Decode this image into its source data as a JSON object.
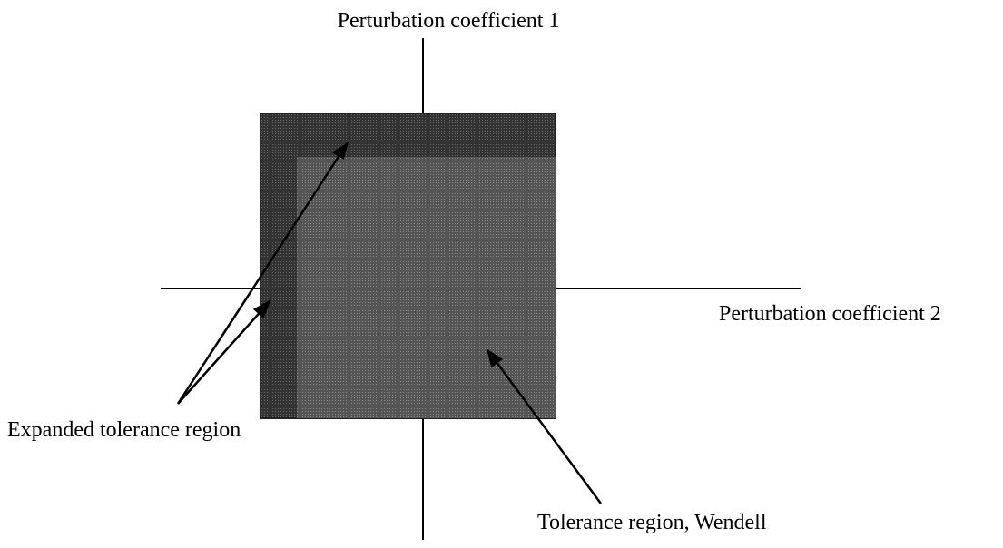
{
  "axes": {
    "vertical_label": "Perturbation coefficient 1",
    "horizontal_label": "Perturbation coefficient 2"
  },
  "regions": [
    {
      "label": "Expanded tolerance region"
    },
    {
      "label": "Tolerance region, Wendell"
    }
  ]
}
